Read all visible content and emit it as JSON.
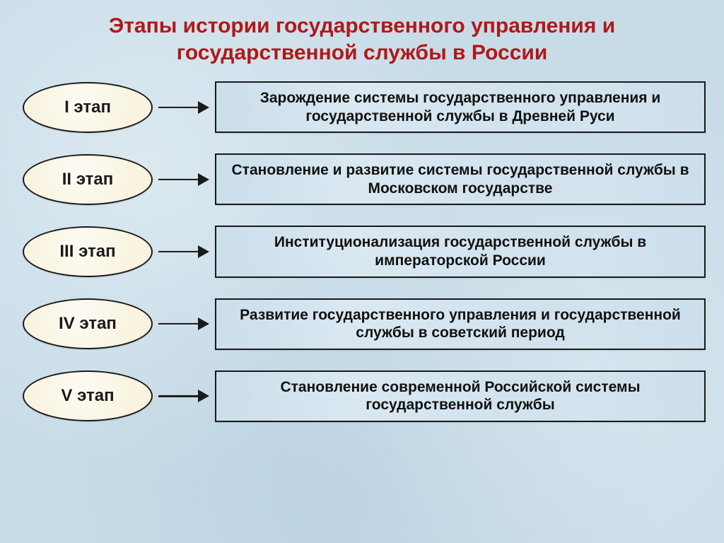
{
  "title": "Этапы истории государственного управления и государственной службы в России",
  "title_color": "#b01818",
  "title_fontsize": 30,
  "background_color": "#c8dce8",
  "stage_style": {
    "fill": "#f9f5e2",
    "border_color": "#1a1a1a",
    "border_width": 2,
    "width": 184,
    "height": 72,
    "fontsize": 24,
    "font_weight": "bold",
    "text_color": "#1a1a1a",
    "shape": "ellipse"
  },
  "desc_style": {
    "fill": "#c6dbe9",
    "border_color": "#1a1a1a",
    "border_width": 2.5,
    "fontsize": 21,
    "font_weight": "bold",
    "text_color": "#111111",
    "shape": "rectangle"
  },
  "arrow_style": {
    "color": "#1a1a1a",
    "shaft_width": 2.2,
    "head_length": 16,
    "head_width": 18,
    "length": 72
  },
  "row_gap": 29,
  "stages": [
    {
      "label": "I этап",
      "description": "Зарождение системы государственного управления и государственной службы в Древней Руси"
    },
    {
      "label": "II этап",
      "description": "Становление и развитие системы государственной службы в Московском государстве"
    },
    {
      "label": "III этап",
      "description": "Институционализация государственной службы в императорской России"
    },
    {
      "label": "IV этап",
      "description": "Развитие государственного управления и государственной службы в советский период"
    },
    {
      "label": "V этап",
      "description": "Становление современной Российской системы государственной службы"
    }
  ]
}
